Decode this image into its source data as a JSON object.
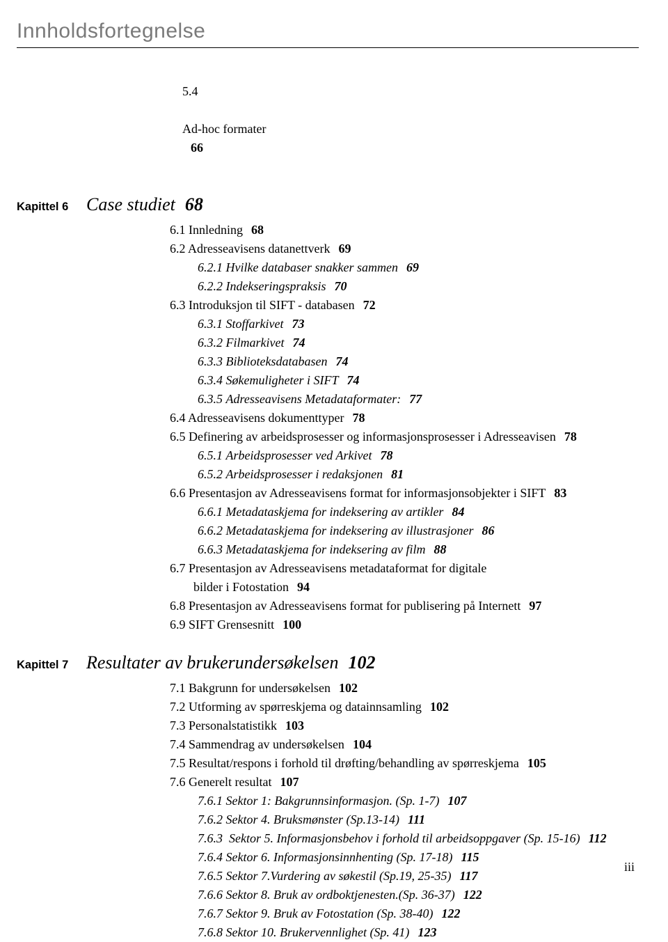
{
  "header": {
    "title": "Innholdsfortegnelse"
  },
  "pre": [
    {
      "num": "5.4",
      "title": "Ad-hoc formater",
      "pg": "66"
    }
  ],
  "ch6": {
    "label": "Kapittel 6",
    "title": "Case studiet",
    "pg": "68",
    "items": [
      {
        "lvl": 1,
        "num": "6.1",
        "title": "Innledning",
        "pg": "68"
      },
      {
        "lvl": 1,
        "num": "6.2",
        "title": "Adresseavisens datanettverk",
        "pg": "69"
      },
      {
        "lvl": 2,
        "num": "6.2.1",
        "title": "Hvilke databaser snakker sammen",
        "pg": "69",
        "italic": true
      },
      {
        "lvl": 2,
        "num": "6.2.2",
        "title": "Indekseringspraksis",
        "pg": "70",
        "italic": true
      },
      {
        "lvl": 1,
        "num": "6.3",
        "title": "Introduksjon til SIFT - databasen",
        "pg": "72"
      },
      {
        "lvl": 2,
        "num": "6.3.1",
        "title": "Stoffarkivet",
        "pg": "73",
        "italic": true
      },
      {
        "lvl": 2,
        "num": "6.3.2",
        "title": "Filmarkivet",
        "pg": "74",
        "italic": true
      },
      {
        "lvl": 2,
        "num": "6.3.3",
        "title": "Biblioteksdatabasen",
        "pg": "74",
        "italic": true
      },
      {
        "lvl": 2,
        "num": "6.3.4",
        "title": "Søkemuligheter i SIFT",
        "pg": "74",
        "italic": true
      },
      {
        "lvl": 2,
        "num": "6.3.5",
        "title": "Adresseavisens Metadataformater:",
        "pg": "77",
        "italic": true
      },
      {
        "lvl": 1,
        "num": "6.4",
        "title": "Adresseavisens dokumenttyper",
        "pg": "78"
      },
      {
        "lvl": 1,
        "num": "6.5",
        "title": "Definering av arbeidsprosesser og informasjonsprosesser i Adresseavisen",
        "pg": "78"
      },
      {
        "lvl": 2,
        "num": "6.5.1",
        "title": "Arbeidsprosesser ved Arkivet",
        "pg": "78",
        "italic": true
      },
      {
        "lvl": 2,
        "num": "6.5.2",
        "title": "Arbeidsprosesser i redaksjonen",
        "pg": "81",
        "italic": true
      },
      {
        "lvl": 1,
        "num": "6.6",
        "title": "Presentasjon av Adresseavisens format for informasjonsobjekter i SIFT",
        "pg": "83"
      },
      {
        "lvl": 2,
        "num": "6.6.1",
        "title": "Metadataskjema for indeksering av artikler",
        "pg": "84",
        "italic": true
      },
      {
        "lvl": 2,
        "num": "6.6.2",
        "title": "Metadataskjema for indeksering av illustrasjoner",
        "pg": "86",
        "italic": true
      },
      {
        "lvl": 2,
        "num": "6.6.3",
        "title": "Metadataskjema for indeksering av film",
        "pg": "88",
        "italic": true
      },
      {
        "lvl": 1,
        "num": "6.7",
        "title": "Presentasjon av Adresseavisens metadataformat for digitale",
        "cont": "bilder i Fotostation",
        "pg": "94"
      },
      {
        "lvl": 1,
        "num": "6.8",
        "title": "Presentasjon av Adresseavisens format for publisering på Internett",
        "pg": "97"
      },
      {
        "lvl": 1,
        "num": "6.9",
        "title": "SIFT Grensesnitt",
        "pg": "100"
      }
    ]
  },
  "ch7": {
    "label": "Kapittel 7",
    "title": "Resultater av brukerundersøkelsen",
    "pg": "102",
    "items": [
      {
        "lvl": 1,
        "num": "7.1",
        "title": "Bakgrunn for undersøkelsen",
        "pg": "102"
      },
      {
        "lvl": 1,
        "num": "7.2",
        "title": "Utforming av spørreskjema og datainnsamling",
        "pg": "102"
      },
      {
        "lvl": 1,
        "num": "7.3",
        "title": "Personalstatistikk",
        "pg": "103"
      },
      {
        "lvl": 1,
        "num": "7.4",
        "title": "Sammendrag av undersøkelsen",
        "pg": "104"
      },
      {
        "lvl": 1,
        "num": "7.5",
        "title": "Resultat/respons i forhold til drøfting/behandling av spørreskjema",
        "pg": "105"
      },
      {
        "lvl": 1,
        "num": "7.6",
        "title": "Generelt resultat",
        "pg": "107"
      },
      {
        "lvl": 2,
        "num": "7.6.1",
        "title": "Sektor 1: Bakgrunnsinformasjon. (Sp. 1-7)",
        "pg": "107",
        "italic": true
      },
      {
        "lvl": 2,
        "num": "7.6.2",
        "title": "Sektor 4. Bruksmønster (Sp.13-14)",
        "pg": "111",
        "italic": true
      },
      {
        "lvl": 2,
        "num": "7.6.3",
        "title": " Sektor 5. Informasjonsbehov i forhold til arbeidsoppgaver (Sp. 15-16)",
        "pg": "112",
        "italic": true
      },
      {
        "lvl": 2,
        "num": "7.6.4",
        "title": "Sektor 6. Informasjonsinnhenting (Sp. 17-18)",
        "pg": "115",
        "italic": true
      },
      {
        "lvl": 2,
        "num": "7.6.5",
        "title": "Sektor 7.Vurdering av søkestil (Sp.19, 25-35)",
        "pg": "117",
        "italic": true
      },
      {
        "lvl": 2,
        "num": "7.6.6",
        "title": "Sektor 8. Bruk av ordboktjenesten.(Sp. 36-37)",
        "pg": "122",
        "italic": true
      },
      {
        "lvl": 2,
        "num": "7.6.7",
        "title": "Sektor 9. Bruk av Fotostation (Sp. 38-40)",
        "pg": "122",
        "italic": true
      },
      {
        "lvl": 2,
        "num": "7.6.8",
        "title": "Sektor 10. Brukervennlighet (Sp. 41)",
        "pg": "123",
        "italic": true
      }
    ]
  },
  "page_number": "iii"
}
